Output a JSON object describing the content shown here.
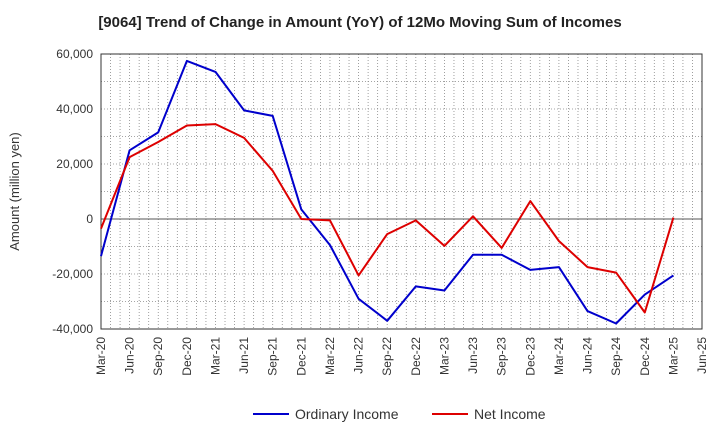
{
  "chart_data": {
    "type": "line",
    "title": "[9064]  Trend of Change in Amount (YoY) of 12Mo Moving Sum of Incomes",
    "xlabel": "",
    "ylabel": "Amount (million yen)",
    "ylim": [
      -40000,
      60000
    ],
    "yticks": [
      -40000,
      -20000,
      0,
      20000,
      40000,
      60000
    ],
    "ytick_labels": [
      "-40,000",
      "-20,000",
      "0",
      "20,000",
      "40,000",
      "60,000"
    ],
    "x_tick_labels": [
      "Mar-20",
      "Jun-20",
      "Sep-20",
      "Dec-20",
      "Mar-21",
      "Jun-21",
      "Sep-21",
      "Dec-21",
      "Mar-22",
      "Jun-22",
      "Sep-22",
      "Dec-22",
      "Mar-23",
      "Jun-23",
      "Sep-23",
      "Dec-23",
      "Mar-24",
      "Jun-24",
      "Sep-24",
      "Dec-24",
      "Mar-25",
      "Jun-25"
    ],
    "grid": true,
    "legend_position": "bottom",
    "series": [
      {
        "name": "Ordinary Income",
        "color": "#0000cc",
        "values": [
          -13500,
          25000,
          31500,
          57500,
          53500,
          39500,
          37500,
          3500,
          -9500,
          -29000,
          -37000,
          -24500,
          -26000,
          -13000,
          -13000,
          -18500,
          -17500,
          -33500,
          -38000,
          -27500,
          -20500
        ]
      },
      {
        "name": "Net Income",
        "color": "#dd0000",
        "values": [
          -3500,
          22500,
          28000,
          34000,
          34500,
          29500,
          17500,
          0,
          -500,
          -20500,
          -5500,
          -500,
          -9800,
          1000,
          -10500,
          6500,
          -8000,
          -17500,
          -19500,
          -34000,
          500
        ]
      }
    ]
  }
}
